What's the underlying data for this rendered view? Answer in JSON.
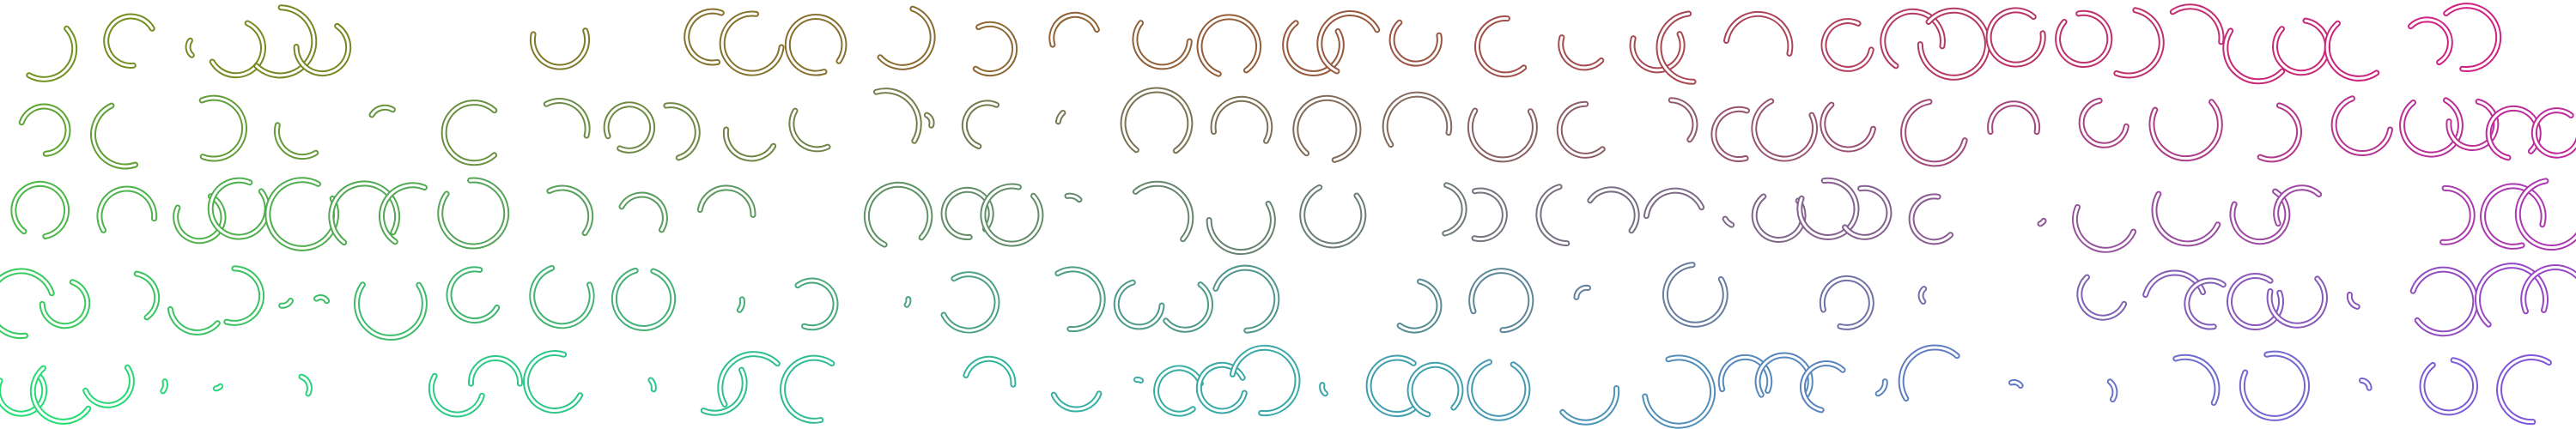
{
  "background": "#ffffff",
  "pattern": {
    "description_shape": "double-stroked arcs",
    "columns": 30,
    "rows": 5,
    "color_corners": {
      "top_left": "#7a8a12",
      "top_mid": "#a0522d",
      "top_right": "#e0117f",
      "bottom_left": "#19e87a",
      "bottom_mid": "#2fb0b8",
      "bottom_right": "#7a5ce6"
    }
  }
}
